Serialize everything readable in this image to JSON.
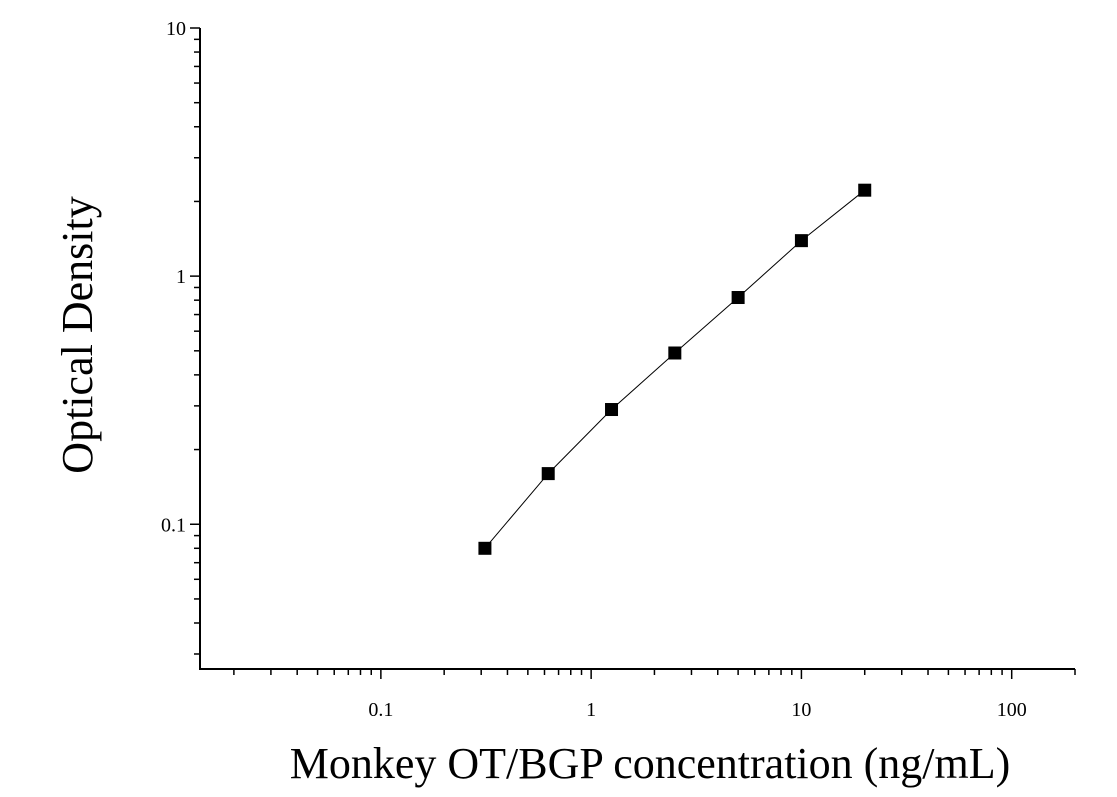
{
  "chart_data": {
    "type": "scatter",
    "xlabel": "Monkey OT/BGP concentration (ng/mL)",
    "ylabel": "Optical Density",
    "x_scale": "log",
    "y_scale": "log",
    "xlim": [
      0.0138,
      200
    ],
    "ylim": [
      0.0261,
      10
    ],
    "x_ticks": [
      {
        "value": 0.1,
        "label": "0.1"
      },
      {
        "value": 1,
        "label": "1"
      },
      {
        "value": 10,
        "label": "10"
      },
      {
        "value": 100,
        "label": "100"
      }
    ],
    "y_ticks": [
      {
        "value": 0.1,
        "label": "0.1"
      },
      {
        "value": 1,
        "label": "1"
      },
      {
        "value": 10,
        "label": "10"
      }
    ],
    "grid": false,
    "legend": "none",
    "series": [
      {
        "x": [
          0.3125,
          0.625,
          1.25,
          2.5,
          5,
          10,
          20
        ],
        "y": [
          0.08,
          0.16,
          0.29,
          0.49,
          0.82,
          1.39,
          2.22
        ],
        "marker": "square",
        "line": "connected",
        "color": "#000000"
      }
    ]
  }
}
